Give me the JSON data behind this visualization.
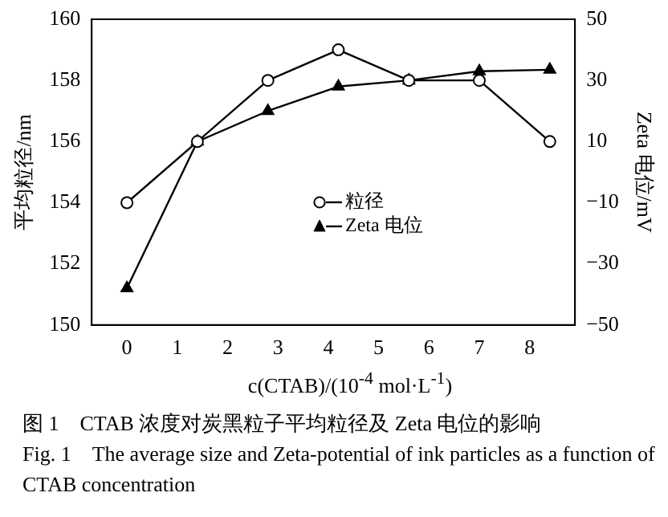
{
  "chart_data": {
    "type": "line",
    "xlabel": "c(CTAB)/(10$^{-4}$ mol·L$^{-1}$)",
    "ylabel": "平均粒径/nm",
    "y2label": "Zeta 电位/mV",
    "x": [
      0,
      1.4,
      2.8,
      4.2,
      5.6,
      7,
      8.4
    ],
    "series": [
      {
        "name": "粒径",
        "color": "#000000",
        "marker": "circle",
        "values": [
          154,
          156,
          158,
          159,
          158,
          158,
          156
        ]
      },
      {
        "name": "Zeta 电位",
        "color": "#000000",
        "marker": "triangle",
        "axis": "y2",
        "values": [
          -38,
          10,
          20,
          28,
          30,
          33,
          33.5
        ]
      }
    ],
    "xlim": [
      -0.7,
      8.9
    ],
    "xticks": [
      0,
      1,
      2,
      3,
      4,
      5,
      6,
      7,
      8
    ],
    "ylim": [
      150,
      160
    ],
    "yticks": [
      150,
      152,
      154,
      156,
      158,
      160
    ],
    "y2lim": [
      -50,
      50
    ],
    "y2ticks": [
      -50,
      -30,
      -10,
      10,
      30,
      50
    ],
    "grid": false,
    "legend": "center right",
    "line_style": "solid",
    "annotations": [
      "图 1　CTAB 浓度对炭黑粒子平均粒径及 Zeta 电位的影响",
      "Fig. 1　The average size and Zeta-potential of ink particles as a function of CTAB concentration"
    ]
  }
}
